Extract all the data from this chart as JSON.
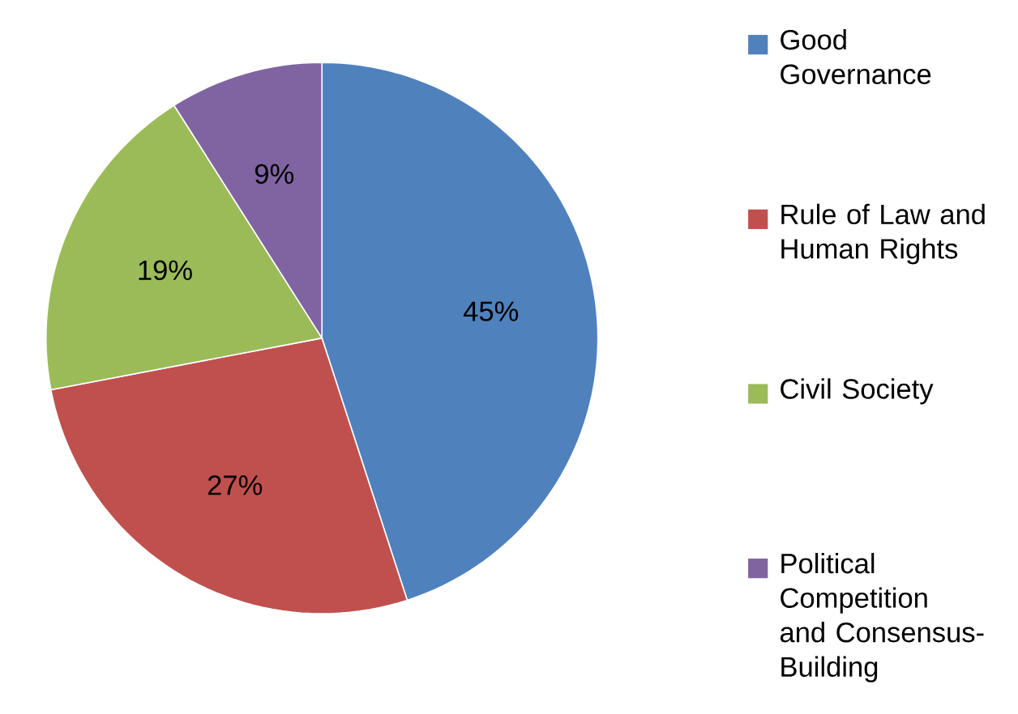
{
  "chart_data": {
    "type": "pie",
    "categories": [
      "Good Governance",
      "Rule of Law and Human Rights",
      "Civil Society",
      "Political Competition and Consensus-Building"
    ],
    "values": [
      45,
      27,
      19,
      9
    ],
    "colors": [
      "#4f81bd",
      "#c0504d",
      "#9bbb59",
      "#8064a2"
    ],
    "value_labels": [
      "45%",
      "27%",
      "19%",
      "9%"
    ],
    "legend": "right"
  }
}
